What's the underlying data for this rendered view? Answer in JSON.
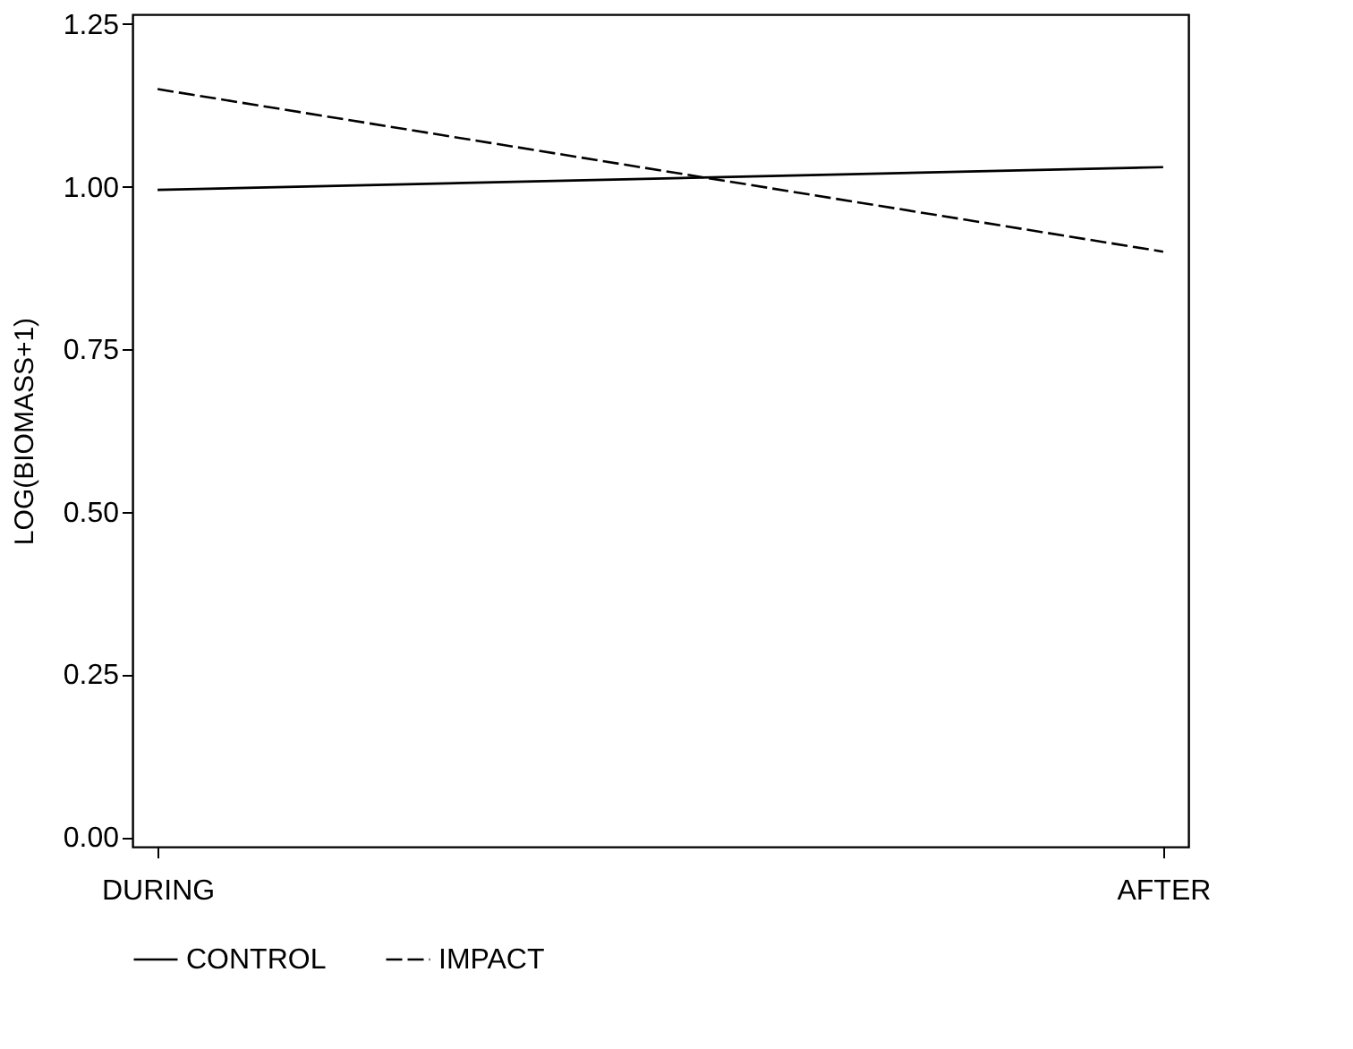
{
  "chart_data": {
    "type": "line",
    "ylabel": "LOG(BIOMASS+1)",
    "categories": [
      "DURING",
      "AFTER"
    ],
    "series": [
      {
        "name": "CONTROL",
        "color": "#000000",
        "line_style": "solid",
        "values": [
          0.995,
          1.03
        ]
      },
      {
        "name": "IMPACT",
        "color": "#000000",
        "line_style": "dashed",
        "values": [
          1.15,
          0.9
        ]
      }
    ],
    "ylim": [
      -0.015,
      1.265
    ],
    "yticks": [
      {
        "value": 0,
        "label": "0.00"
      },
      0.25,
      {
        "value": 0.5,
        "label": "0.50"
      },
      0.75,
      {
        "value": 1,
        "label": "1.00"
      },
      1.25
    ],
    "grid": false,
    "legend": "bottom",
    "marker": "none"
  }
}
